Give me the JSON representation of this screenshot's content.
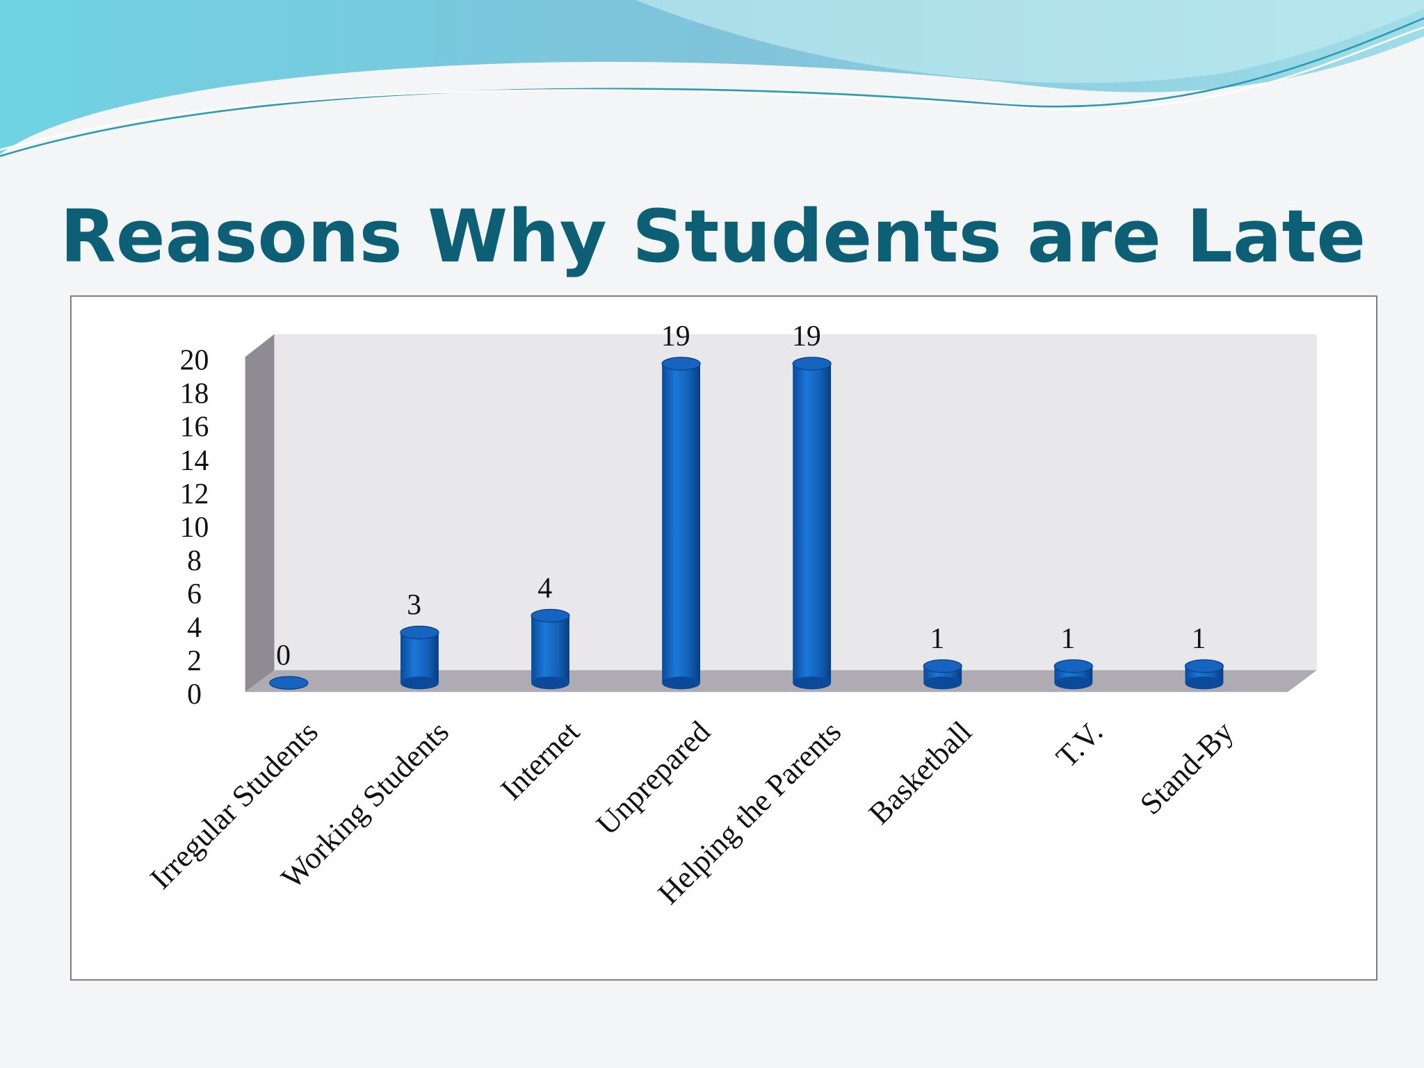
{
  "chart_data": {
    "type": "bar3d",
    "title": "Reasons Why Students are Late",
    "categories": [
      "Irregular Students",
      "Working Students",
      "Internet",
      "Unprepared",
      "Helping the Parents",
      "Basketball",
      "T.V.",
      "Stand-By"
    ],
    "values": [
      0,
      3,
      4,
      19,
      19,
      1,
      1,
      1
    ],
    "color": "#1565c0",
    "ylim": [
      0,
      20
    ],
    "yticks": [
      0,
      2,
      4,
      6,
      8,
      10,
      12,
      14,
      16,
      18,
      20
    ],
    "grid": false
  }
}
